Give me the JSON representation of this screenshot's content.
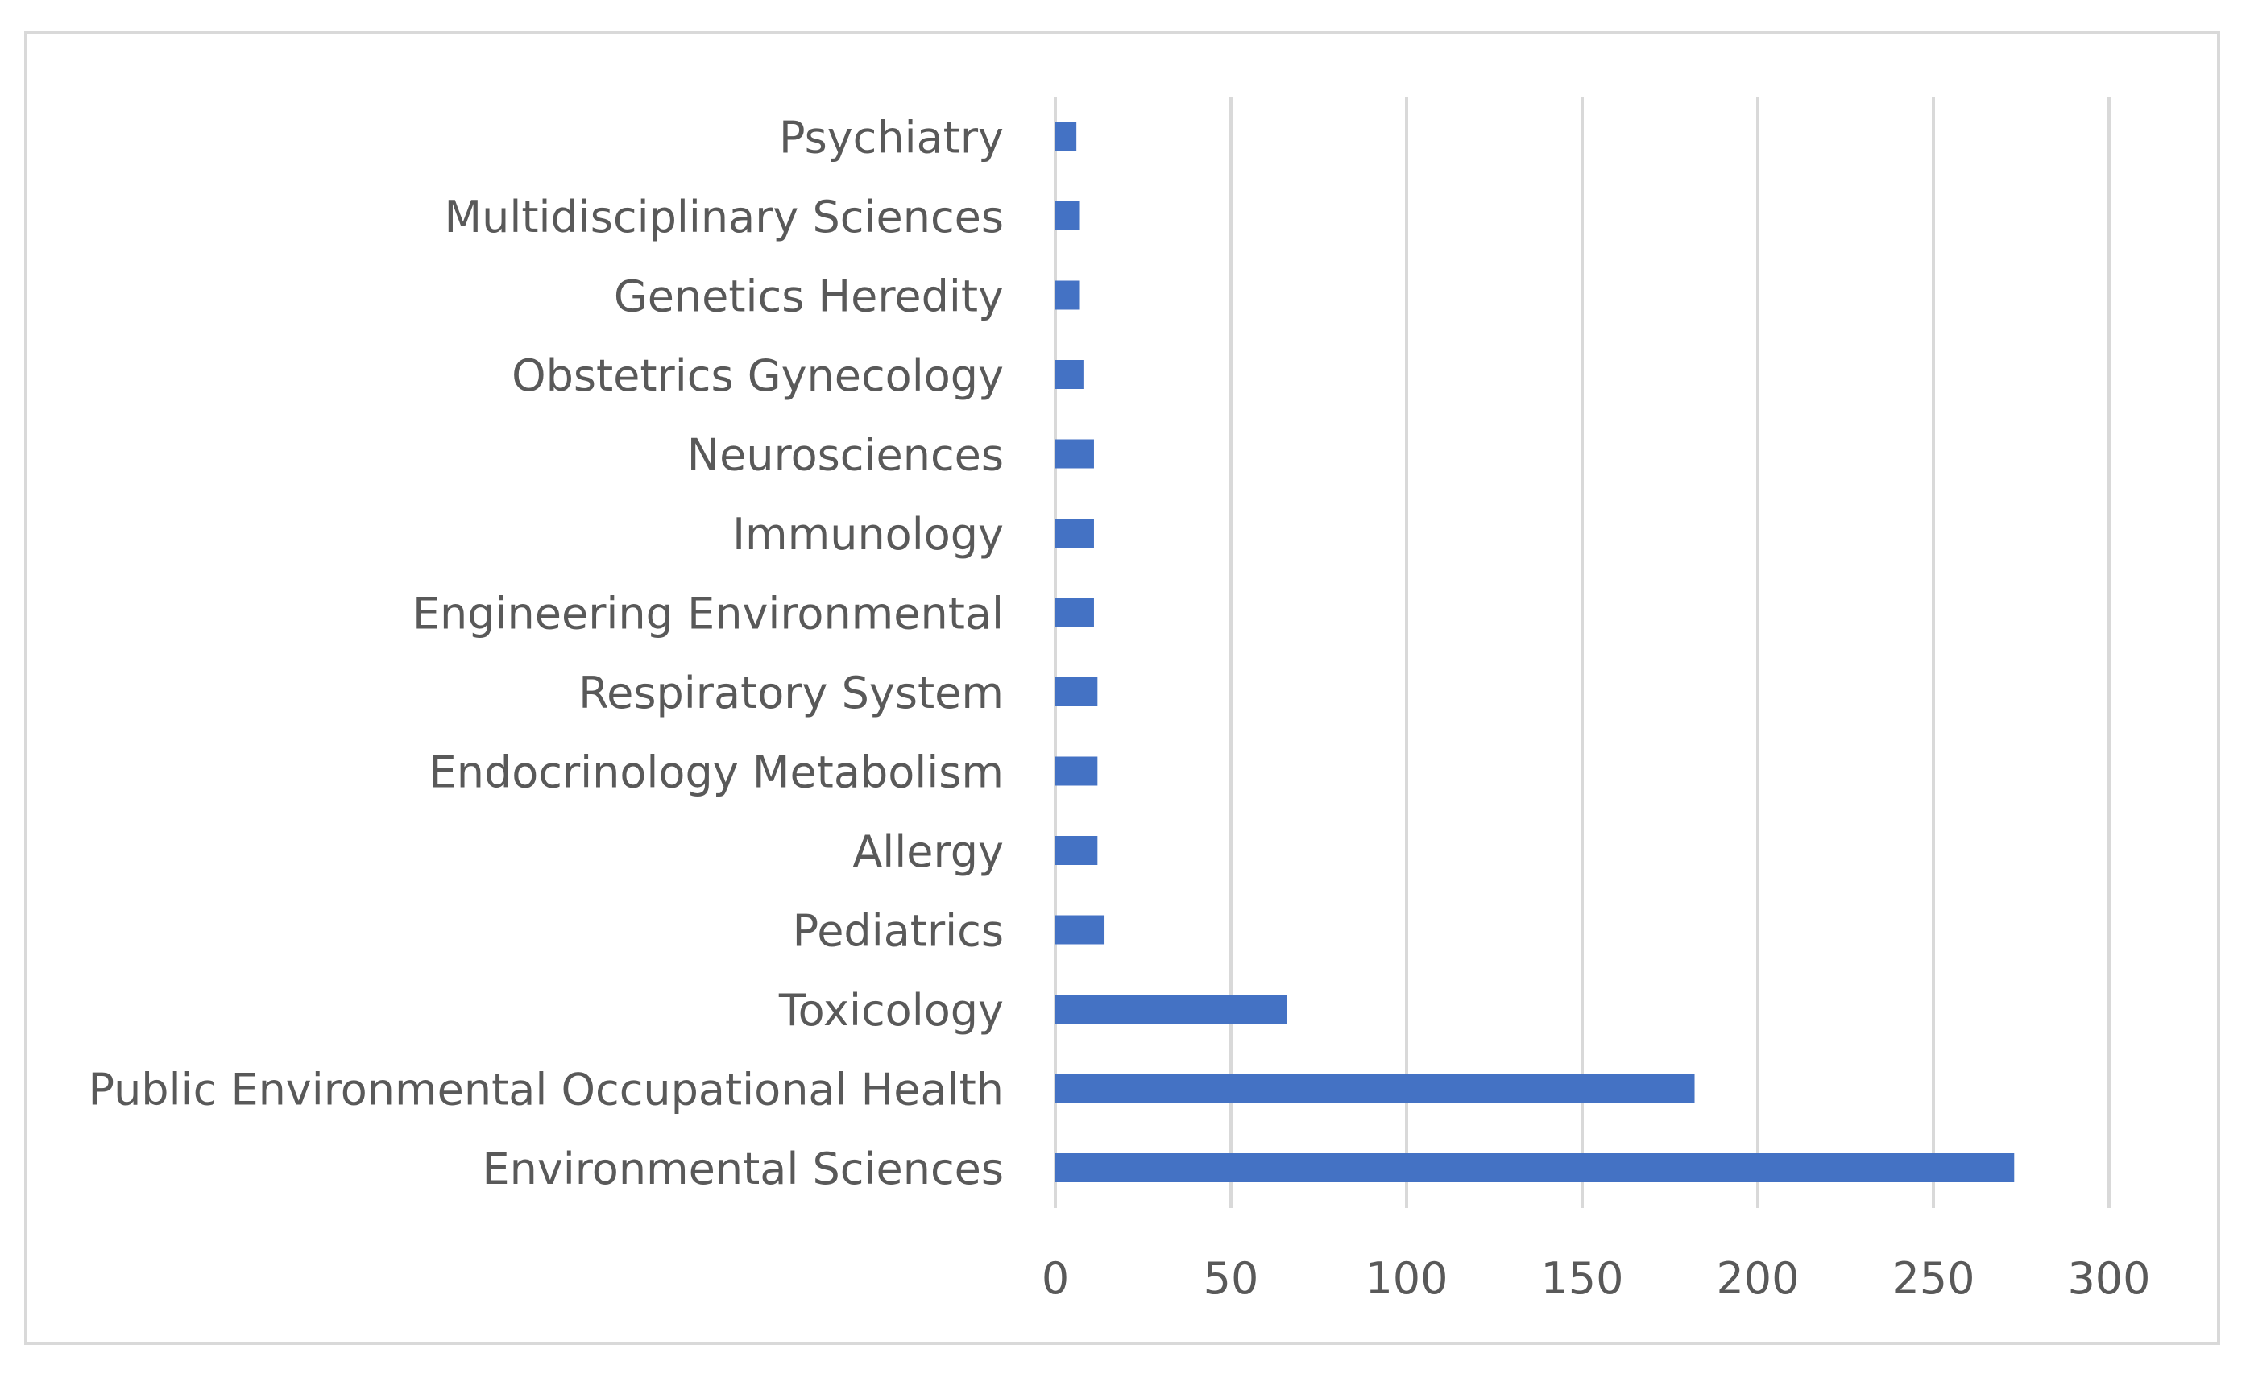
{
  "chart_data": {
    "type": "bar",
    "orientation": "horizontal",
    "categories": [
      "Environmental Sciences",
      "Public Environmental Occupational Health",
      "Toxicology",
      "Pediatrics",
      "Allergy",
      "Endocrinology Metabolism",
      "Respiratory System",
      "Engineering Environmental",
      "Immunology",
      "Neurosciences",
      "Obstetrics Gynecology",
      "Genetics Heredity",
      "Multidisciplinary Sciences",
      "Psychiatry"
    ],
    "values": [
      273,
      182,
      66,
      14,
      12,
      12,
      12,
      11,
      11,
      11,
      8,
      7,
      7,
      6
    ],
    "title": "",
    "xlabel": "",
    "ylabel": "",
    "xlim": [
      0,
      300
    ],
    "xticks": [
      "0",
      "50",
      "100",
      "150",
      "200",
      "250",
      "300"
    ],
    "xtick_values": [
      0,
      50,
      100,
      150,
      200,
      250,
      300
    ],
    "grid": "vertical",
    "legend": "none",
    "bar_color": "#4472c4",
    "grid_color": "#d9d9d9",
    "text_color": "#595959"
  }
}
